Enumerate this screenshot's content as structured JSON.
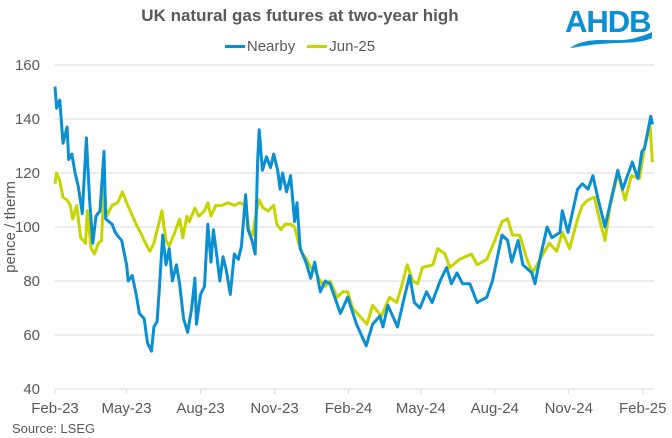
{
  "logo": {
    "text": "AHDB",
    "color": "#0a8fd2"
  },
  "source": "Source: LSEG",
  "chart_data": {
    "type": "line",
    "title": "UK natural gas futures at two-year high",
    "xlabel": "",
    "ylabel": "pence / therm",
    "ylim": [
      40,
      160
    ],
    "yticks": [
      40,
      60,
      80,
      100,
      120,
      140,
      160
    ],
    "xlim": [
      "2023-02-01",
      "2025-02-15"
    ],
    "xticks": [
      {
        "date": "2023-02-01",
        "label": "Feb-23"
      },
      {
        "date": "2023-05-01",
        "label": "May-23"
      },
      {
        "date": "2023-08-01",
        "label": "Aug-23"
      },
      {
        "date": "2023-11-01",
        "label": "Nov-23"
      },
      {
        "date": "2024-02-01",
        "label": "Feb-24"
      },
      {
        "date": "2024-05-01",
        "label": "May-24"
      },
      {
        "date": "2024-08-01",
        "label": "Aug-24"
      },
      {
        "date": "2024-11-01",
        "label": "Nov-24"
      },
      {
        "date": "2025-02-01",
        "label": "Feb-25"
      }
    ],
    "grid": "horizontal",
    "legend_position": "top",
    "series": [
      {
        "name": "Nearby",
        "color": "#0a8fd2",
        "points": [
          [
            "2023-02-01",
            152
          ],
          [
            "2023-02-03",
            144
          ],
          [
            "2023-02-07",
            147
          ],
          [
            "2023-02-11",
            131
          ],
          [
            "2023-02-16",
            137
          ],
          [
            "2023-02-18",
            125
          ],
          [
            "2023-02-22",
            127
          ],
          [
            "2023-02-26",
            120
          ],
          [
            "2023-03-02",
            115
          ],
          [
            "2023-03-07",
            105
          ],
          [
            "2023-03-12",
            133
          ],
          [
            "2023-03-16",
            110
          ],
          [
            "2023-03-20",
            94
          ],
          [
            "2023-03-24",
            104
          ],
          [
            "2023-03-29",
            106
          ],
          [
            "2023-04-03",
            128
          ],
          [
            "2023-04-05",
            103
          ],
          [
            "2023-04-13",
            101
          ],
          [
            "2023-04-17",
            98
          ],
          [
            "2023-04-22",
            96
          ],
          [
            "2023-04-25",
            95
          ],
          [
            "2023-05-01",
            86
          ],
          [
            "2023-05-03",
            80
          ],
          [
            "2023-05-08",
            82
          ],
          [
            "2023-05-13",
            75
          ],
          [
            "2023-05-17",
            68
          ],
          [
            "2023-05-23",
            66
          ],
          [
            "2023-05-27",
            57
          ],
          [
            "2023-06-01",
            54
          ],
          [
            "2023-06-04",
            63
          ],
          [
            "2023-06-08",
            65
          ],
          [
            "2023-06-11",
            78
          ],
          [
            "2023-06-15",
            97
          ],
          [
            "2023-06-19",
            86
          ],
          [
            "2023-06-23",
            92
          ],
          [
            "2023-06-27",
            80
          ],
          [
            "2023-07-02",
            86
          ],
          [
            "2023-07-06",
            79
          ],
          [
            "2023-07-11",
            66
          ],
          [
            "2023-07-16",
            61
          ],
          [
            "2023-07-21",
            70
          ],
          [
            "2023-07-25",
            81
          ],
          [
            "2023-07-27",
            64
          ],
          [
            "2023-08-01",
            75
          ],
          [
            "2023-08-06",
            78
          ],
          [
            "2023-08-10",
            101
          ],
          [
            "2023-08-14",
            87
          ],
          [
            "2023-08-17",
            99
          ],
          [
            "2023-08-21",
            90
          ],
          [
            "2023-08-25",
            80
          ],
          [
            "2023-08-29",
            89
          ],
          [
            "2023-09-02",
            84
          ],
          [
            "2023-09-07",
            75
          ],
          [
            "2023-09-12",
            90
          ],
          [
            "2023-09-17",
            88
          ],
          [
            "2023-09-21",
            93
          ],
          [
            "2023-09-26",
            112
          ],
          [
            "2023-09-29",
            99
          ],
          [
            "2023-10-04",
            95
          ],
          [
            "2023-10-08",
            90
          ],
          [
            "2023-10-11",
            124
          ],
          [
            "2023-10-13",
            136
          ],
          [
            "2023-10-17",
            121
          ],
          [
            "2023-10-22",
            126
          ],
          [
            "2023-10-27",
            122
          ],
          [
            "2023-10-31",
            127
          ],
          [
            "2023-11-05",
            121
          ],
          [
            "2023-11-08",
            114
          ],
          [
            "2023-11-11",
            120
          ],
          [
            "2023-11-16",
            113
          ],
          [
            "2023-11-21",
            119
          ],
          [
            "2023-11-26",
            102
          ],
          [
            "2023-11-29",
            109
          ],
          [
            "2023-12-03",
            92
          ],
          [
            "2023-12-10",
            87
          ],
          [
            "2023-12-16",
            81
          ],
          [
            "2023-12-21",
            87
          ],
          [
            "2023-12-28",
            76
          ],
          [
            "2024-01-03",
            80
          ],
          [
            "2024-01-09",
            79
          ],
          [
            "2024-01-22",
            68
          ],
          [
            "2024-01-31",
            74
          ],
          [
            "2024-02-11",
            64
          ],
          [
            "2024-02-23",
            56
          ],
          [
            "2024-03-02",
            64
          ],
          [
            "2024-03-11",
            67
          ],
          [
            "2024-03-15",
            63
          ],
          [
            "2024-03-21",
            71
          ],
          [
            "2024-04-02",
            63
          ],
          [
            "2024-04-09",
            72
          ],
          [
            "2024-04-17",
            82
          ],
          [
            "2024-04-23",
            72
          ],
          [
            "2024-04-30",
            70
          ],
          [
            "2024-05-08",
            76
          ],
          [
            "2024-05-15",
            72
          ],
          [
            "2024-05-25",
            80
          ],
          [
            "2024-06-02",
            85
          ],
          [
            "2024-06-08",
            79
          ],
          [
            "2024-06-15",
            83
          ],
          [
            "2024-06-22",
            79
          ],
          [
            "2024-07-01",
            79
          ],
          [
            "2024-07-10",
            72
          ],
          [
            "2024-07-22",
            74
          ],
          [
            "2024-07-29",
            80
          ],
          [
            "2024-08-03",
            87
          ],
          [
            "2024-08-10",
            97
          ],
          [
            "2024-08-17",
            95
          ],
          [
            "2024-08-22",
            87
          ],
          [
            "2024-08-30",
            95
          ],
          [
            "2024-09-05",
            86
          ],
          [
            "2024-09-16",
            83
          ],
          [
            "2024-09-20",
            79
          ],
          [
            "2024-09-26",
            88
          ],
          [
            "2024-10-05",
            100
          ],
          [
            "2024-10-11",
            96
          ],
          [
            "2024-10-21",
            98
          ],
          [
            "2024-10-24",
            106
          ],
          [
            "2024-10-31",
            98
          ],
          [
            "2024-11-12",
            114
          ],
          [
            "2024-11-18",
            116
          ],
          [
            "2024-11-25",
            114
          ],
          [
            "2024-12-01",
            119
          ],
          [
            "2024-12-07",
            111
          ],
          [
            "2024-12-16",
            100
          ],
          [
            "2024-12-22",
            108
          ],
          [
            "2025-01-01",
            121
          ],
          [
            "2025-01-07",
            114
          ],
          [
            "2025-01-19",
            124
          ],
          [
            "2025-01-26",
            118
          ],
          [
            "2025-01-31",
            128
          ],
          [
            "2025-02-03",
            129
          ],
          [
            "2025-02-11",
            141
          ],
          [
            "2025-02-13",
            138
          ]
        ]
      },
      {
        "name": "Jun-25",
        "color": "#c8d400",
        "points": [
          [
            "2023-02-01",
            116
          ],
          [
            "2023-02-03",
            120
          ],
          [
            "2023-02-07",
            117
          ],
          [
            "2023-02-11",
            111
          ],
          [
            "2023-02-16",
            110
          ],
          [
            "2023-02-20",
            108
          ],
          [
            "2023-02-23",
            103
          ],
          [
            "2023-02-28",
            108
          ],
          [
            "2023-03-05",
            96
          ],
          [
            "2023-03-11",
            94
          ],
          [
            "2023-03-13",
            106
          ],
          [
            "2023-03-18",
            92
          ],
          [
            "2023-03-22",
            90
          ],
          [
            "2023-03-27",
            94
          ],
          [
            "2023-03-31",
            95
          ],
          [
            "2023-04-03",
            117
          ],
          [
            "2023-04-06",
            104
          ],
          [
            "2023-04-13",
            108
          ],
          [
            "2023-04-20",
            109
          ],
          [
            "2023-04-26",
            113
          ],
          [
            "2023-05-01",
            109
          ],
          [
            "2023-05-07",
            105
          ],
          [
            "2023-05-13",
            101
          ],
          [
            "2023-05-20",
            97
          ],
          [
            "2023-05-23",
            95
          ],
          [
            "2023-05-30",
            91
          ],
          [
            "2023-06-04",
            94
          ],
          [
            "2023-06-10",
            101
          ],
          [
            "2023-06-14",
            106
          ],
          [
            "2023-06-19",
            95
          ],
          [
            "2023-06-23",
            93
          ],
          [
            "2023-06-30",
            98
          ],
          [
            "2023-07-06",
            103
          ],
          [
            "2023-07-10",
            96
          ],
          [
            "2023-07-15",
            104
          ],
          [
            "2023-07-18",
            102
          ],
          [
            "2023-07-25",
            107
          ],
          [
            "2023-07-30",
            104
          ],
          [
            "2023-08-06",
            106
          ],
          [
            "2023-08-10",
            109
          ],
          [
            "2023-08-14",
            104
          ],
          [
            "2023-08-20",
            108
          ],
          [
            "2023-08-28",
            108
          ],
          [
            "2023-09-04",
            109
          ],
          [
            "2023-09-12",
            108
          ],
          [
            "2023-09-19",
            109
          ],
          [
            "2023-09-26",
            108
          ],
          [
            "2023-09-30",
            99
          ],
          [
            "2023-10-05",
            97
          ],
          [
            "2023-10-09",
            105
          ],
          [
            "2023-10-13",
            110
          ],
          [
            "2023-10-18",
            107
          ],
          [
            "2023-10-24",
            106
          ],
          [
            "2023-10-31",
            108
          ],
          [
            "2023-11-04",
            101
          ],
          [
            "2023-11-09",
            99
          ],
          [
            "2023-11-14",
            101
          ],
          [
            "2023-11-21",
            101
          ],
          [
            "2023-11-26",
            100
          ],
          [
            "2023-12-01",
            94
          ],
          [
            "2023-12-06",
            90
          ],
          [
            "2023-12-11",
            88
          ],
          [
            "2023-12-16",
            85
          ],
          [
            "2023-12-21",
            84
          ],
          [
            "2023-12-28",
            80
          ],
          [
            "2024-01-03",
            78
          ],
          [
            "2024-01-09",
            80
          ],
          [
            "2024-01-18",
            74
          ],
          [
            "2024-01-25",
            76
          ],
          [
            "2024-01-31",
            76
          ],
          [
            "2024-02-06",
            70
          ],
          [
            "2024-02-15",
            67
          ],
          [
            "2024-02-24",
            64
          ],
          [
            "2024-03-02",
            71
          ],
          [
            "2024-03-13",
            67
          ],
          [
            "2024-03-23",
            74
          ],
          [
            "2024-04-01",
            72
          ],
          [
            "2024-04-07",
            78
          ],
          [
            "2024-04-14",
            86
          ],
          [
            "2024-04-21",
            80
          ],
          [
            "2024-04-27",
            79
          ],
          [
            "2024-05-03",
            85
          ],
          [
            "2024-05-16",
            86
          ],
          [
            "2024-05-22",
            92
          ],
          [
            "2024-05-31",
            90
          ],
          [
            "2024-06-06",
            85
          ],
          [
            "2024-06-18",
            88
          ],
          [
            "2024-07-03",
            90
          ],
          [
            "2024-07-10",
            86
          ],
          [
            "2024-07-22",
            88
          ],
          [
            "2024-08-01",
            95
          ],
          [
            "2024-08-10",
            102
          ],
          [
            "2024-08-17",
            103
          ],
          [
            "2024-08-23",
            97
          ],
          [
            "2024-09-01",
            97
          ],
          [
            "2024-09-10",
            88
          ],
          [
            "2024-09-17",
            83
          ],
          [
            "2024-09-30",
            90
          ],
          [
            "2024-10-08",
            94
          ],
          [
            "2024-10-17",
            91
          ],
          [
            "2024-10-24",
            98
          ],
          [
            "2024-11-02",
            92
          ],
          [
            "2024-11-12",
            103
          ],
          [
            "2024-11-18",
            108
          ],
          [
            "2024-11-25",
            110
          ],
          [
            "2024-12-03",
            111
          ],
          [
            "2024-12-09",
            103
          ],
          [
            "2024-12-16",
            95
          ],
          [
            "2024-12-22",
            107
          ],
          [
            "2025-01-01",
            120
          ],
          [
            "2025-01-10",
            110
          ],
          [
            "2025-01-18",
            119
          ],
          [
            "2025-01-28",
            118
          ],
          [
            "2025-02-03",
            129
          ],
          [
            "2025-02-10",
            138
          ],
          [
            "2025-02-13",
            124
          ]
        ]
      }
    ]
  }
}
